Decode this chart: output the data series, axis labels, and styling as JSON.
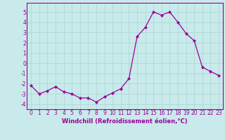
{
  "x": [
    0,
    1,
    2,
    3,
    4,
    5,
    6,
    7,
    8,
    9,
    10,
    11,
    12,
    13,
    14,
    15,
    16,
    17,
    18,
    19,
    20,
    21,
    22,
    23
  ],
  "y": [
    -2.2,
    -3.0,
    -2.7,
    -2.3,
    -2.8,
    -3.0,
    -3.4,
    -3.4,
    -3.8,
    -3.3,
    -2.9,
    -2.5,
    -1.5,
    2.6,
    3.5,
    5.0,
    4.7,
    5.0,
    4.0,
    2.9,
    2.2,
    -0.4,
    -0.8,
    -1.2
  ],
  "line_color": "#990099",
  "marker": "D",
  "markersize": 2.0,
  "linewidth": 0.9,
  "bg_color": "#c8eaea",
  "grid_color": "#b0d8d8",
  "xlabel": "Windchill (Refroidissement éolien,°C)",
  "xlabel_color": "#990099",
  "tick_color": "#990099",
  "ylim": [
    -4.5,
    5.9
  ],
  "xlim": [
    -0.5,
    23.5
  ],
  "yticks": [
    -4,
    -3,
    -2,
    -1,
    0,
    1,
    2,
    3,
    4,
    5
  ],
  "xticks": [
    0,
    1,
    2,
    3,
    4,
    5,
    6,
    7,
    8,
    9,
    10,
    11,
    12,
    13,
    14,
    15,
    16,
    17,
    18,
    19,
    20,
    21,
    22,
    23
  ],
  "tick_fontsize": 5.5,
  "xlabel_fontsize": 6.0
}
